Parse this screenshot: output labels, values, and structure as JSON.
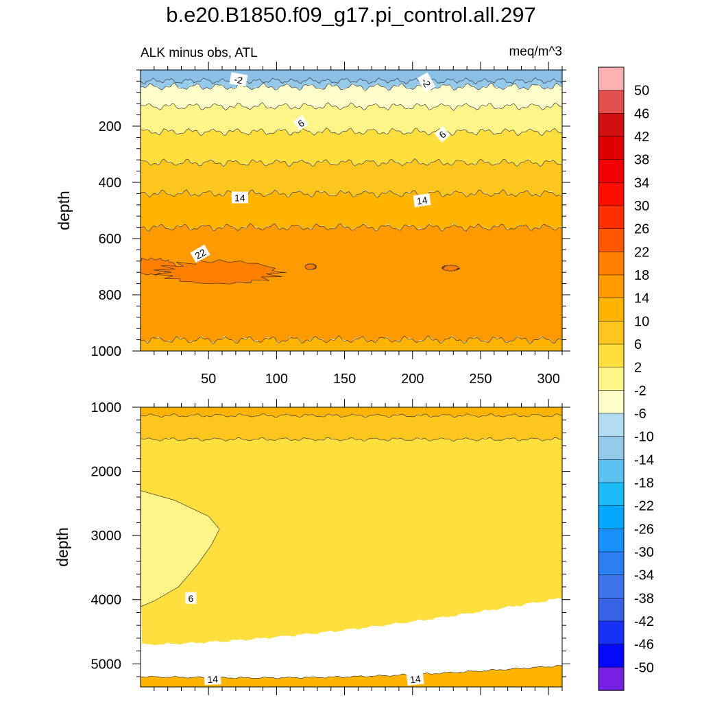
{
  "chart_data": {
    "type": "contour",
    "title": "b.e20.B1850.f09_g17.pi_control.all.297",
    "left_subtitle": "ALK minus obs, ATL",
    "right_subtitle": "meq/m^3",
    "colorbar": {
      "labels": [
        "50",
        "46",
        "42",
        "38",
        "34",
        "30",
        "26",
        "22",
        "18",
        "14",
        "10",
        "6",
        "2",
        "-2",
        "-6",
        "-10",
        "-14",
        "-18",
        "-22",
        "-26",
        "-30",
        "-34",
        "-38",
        "-42",
        "-46",
        "-50"
      ],
      "colors": [
        "#fdb1b0",
        "#e1504e",
        "#d0110f",
        "#de0000",
        "#f10000",
        "#ff0e00",
        "#fe2e00",
        "#ff5600",
        "#ff7f00",
        "#ff9a00",
        "#ffb400",
        "#fdc61e",
        "#fedf3e",
        "#fef588",
        "#fefeca",
        "#b1dcf1",
        "#96caeb",
        "#5cc2f2",
        "#1bbbf8",
        "#03a7fb",
        "#1891fb",
        "#2b7ff0",
        "#3f73eb",
        "#3663e6",
        "#1831f6",
        "#0409fa",
        "#7621e2"
      ]
    },
    "x_axis": {
      "range": [
        0,
        310
      ],
      "tick_labels": [
        "50",
        "100",
        "150",
        "200",
        "250",
        "300"
      ]
    },
    "panels": [
      {
        "name": "upper",
        "ylabel": "depth",
        "ylim": [
          0,
          1000
        ],
        "y_tick_labels": [
          "200",
          "400",
          "600",
          "800",
          "1000"
        ],
        "bands": [
          {
            "from": 0,
            "to": 60,
            "fill": "#96caeb"
          },
          {
            "from": 60,
            "to": 130,
            "fill": "#fefeca"
          },
          {
            "from": 130,
            "to": 220,
            "fill": "#fef588"
          },
          {
            "from": 220,
            "to": 330,
            "fill": "#fedf3e"
          },
          {
            "from": 330,
            "to": 440,
            "fill": "#fdc61e"
          },
          {
            "from": 440,
            "to": 560,
            "fill": "#ffb400"
          },
          {
            "from": 560,
            "to": 960,
            "fill": "#ff9a00"
          },
          {
            "from": 960,
            "to": 1000,
            "fill": "#ffb400"
          }
        ],
        "contour_labels": [
          "-2",
          "-2",
          "6",
          "6",
          "14",
          "14",
          "22"
        ]
      },
      {
        "name": "lower",
        "ylabel": "depth",
        "ylim": [
          1000,
          5360
        ],
        "y_tick_labels": [
          "1000",
          "2000",
          "3000",
          "4000",
          "5000"
        ],
        "bands": [
          {
            "from": 1000,
            "to": 1130,
            "fill": "#ffb400"
          },
          {
            "from": 1130,
            "to": 1500,
            "fill": "#fdc61e"
          },
          {
            "from": 1500,
            "to": 4700,
            "fill": "#fedf3e"
          },
          {
            "from": 4700,
            "to": 5200,
            "fill": "#fdc61e"
          },
          {
            "from": 5200,
            "to": 5360,
            "fill": "#ffb400"
          }
        ],
        "contour_labels": [
          "6",
          "14",
          "14"
        ]
      }
    ]
  }
}
